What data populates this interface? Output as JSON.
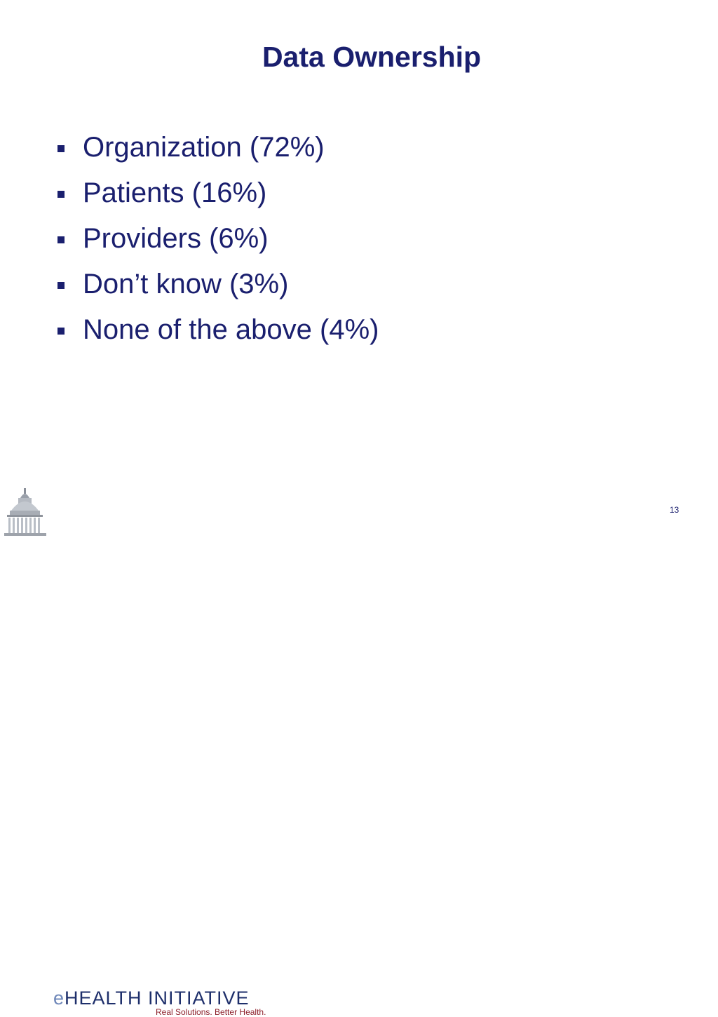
{
  "slide": {
    "title": "Data Ownership",
    "bullets": [
      {
        "label": "Organization (72%)"
      },
      {
        "label": "Patients (16%)"
      },
      {
        "label": "Providers (6%)"
      },
      {
        "label": "Don’t know (3%)"
      },
      {
        "label": "None of the above (4%)"
      }
    ],
    "page_number": "13"
  },
  "footer": {
    "logo_prefix": "e",
    "logo_name": "HEALTH INITIATIVE",
    "tagline": "Real Solutions. Better Health.",
    "logo_icon": "capitol-dome-icon"
  },
  "colors": {
    "text": "#1a1f6e",
    "logo_text": "#1e2f6b",
    "logo_e": "#6d86b8",
    "tagline": "#8c1f2a"
  }
}
